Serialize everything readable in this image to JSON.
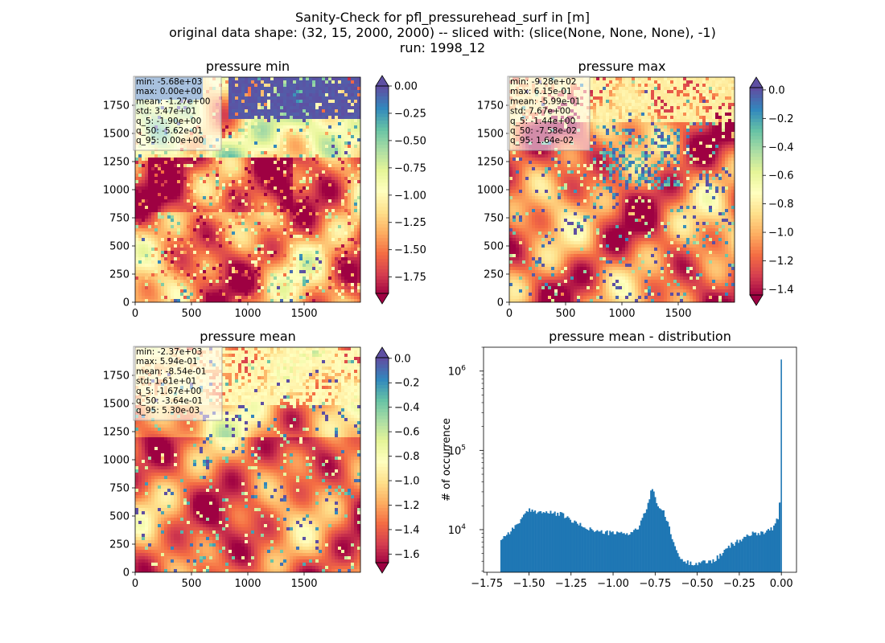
{
  "suptitle": {
    "line1": "Sanity-Check for pfl_pressurehead_surf in [m]",
    "line2": "original data shape: (32, 15, 2000, 2000) -- sliced with: (slice(None, None, None), -1)",
    "line3": "run: 1998_12"
  },
  "chart_data": [
    {
      "type": "heatmap",
      "title": "pressure min",
      "colormap": "Spectral",
      "extend": "both",
      "x_ticks": [
        "0",
        "500",
        "1000",
        "1500"
      ],
      "y_ticks": [
        "0",
        "250",
        "500",
        "750",
        "1000",
        "1250",
        "1500",
        "1750"
      ],
      "xlim": [
        0,
        2000
      ],
      "ylim": [
        0,
        2000
      ],
      "colorbar": {
        "vmin": -1.9,
        "vmax": 0.0,
        "ticks": [
          "0.00",
          "-0.25",
          "-0.50",
          "-0.75",
          "-1.00",
          "-1.25",
          "-1.50",
          "-1.75"
        ],
        "tick_values": [
          0.0,
          -0.25,
          -0.5,
          -0.75,
          -1.0,
          -1.25,
          -1.5,
          -1.75
        ]
      },
      "stats": [
        "min: -5.68e+03",
        "max: 0.00e+00",
        "mean: -1.27e+00",
        "std: 3.47e+01",
        "q_5: -1.90e+00",
        "q_50: -5.62e-01",
        "q_95: 0.00e+00"
      ]
    },
    {
      "type": "heatmap",
      "title": "pressure max",
      "colormap": "Spectral",
      "extend": "both",
      "x_ticks": [
        "0",
        "500",
        "1000",
        "1500"
      ],
      "y_ticks": [
        "0",
        "250",
        "500",
        "750",
        "1000",
        "1250",
        "1500",
        "1750"
      ],
      "xlim": [
        0,
        2000
      ],
      "ylim": [
        0,
        2000
      ],
      "colorbar": {
        "vmin": -1.44,
        "vmax": 0.0164,
        "ticks": [
          "0.0",
          "-0.2",
          "-0.4",
          "-0.6",
          "-0.8",
          "-1.0",
          "-1.2",
          "-1.4"
        ],
        "tick_values": [
          0.0,
          -0.2,
          -0.4,
          -0.6,
          -0.8,
          -1.0,
          -1.2,
          -1.4
        ]
      },
      "stats": [
        "min: -9.28e+02",
        "max: 6.15e-01",
        "mean: -5.99e-01",
        "std: 7.67e+00",
        "q_5: -1.44e+00",
        "q_50: -7.58e-02",
        "q_95: 1.64e-02"
      ]
    },
    {
      "type": "heatmap",
      "title": "pressure mean",
      "colormap": "Spectral",
      "extend": "both",
      "x_ticks": [
        "0",
        "500",
        "1000",
        "1500"
      ],
      "y_ticks": [
        "0",
        "250",
        "500",
        "750",
        "1000",
        "1250",
        "1500",
        "1750"
      ],
      "xlim": [
        0,
        2000
      ],
      "ylim": [
        0,
        2000
      ],
      "colorbar": {
        "vmin": -1.67,
        "vmax": 0.0053,
        "ticks": [
          "0.0",
          "-0.2",
          "-0.4",
          "-0.6",
          "-0.8",
          "-1.0",
          "-1.2",
          "-1.4",
          "-1.6"
        ],
        "tick_values": [
          0.0,
          -0.2,
          -0.4,
          -0.6,
          -0.8,
          -1.0,
          -1.2,
          -1.4,
          -1.6
        ]
      },
      "stats": [
        "min: -2.37e+03",
        "max: 5.94e-01",
        "mean: -8.54e-01",
        "std: 1.61e+01",
        "q_5: -1.67e+00",
        "q_50: -3.64e-01",
        "q_95: 5.30e-03"
      ]
    },
    {
      "type": "bar",
      "subtype": "histogram",
      "title": "pressure mean - distribution",
      "ylabel": "# of occurrence",
      "yscale": "log",
      "color": "#1f77b4",
      "xlim": [
        -1.77,
        0.09
      ],
      "ylim": [
        2900,
        2000000
      ],
      "x_ticks": [
        "−1.75",
        "−1.50",
        "−1.25",
        "−1.00",
        "−0.75",
        "−0.50",
        "−0.25",
        "0.00"
      ],
      "x_tick_values": [
        -1.75,
        -1.5,
        -1.25,
        -1.0,
        -0.75,
        -0.5,
        -0.25,
        0.0
      ],
      "y_ticks": [
        {
          "base": "10",
          "exp": "4",
          "value": 10000
        },
        {
          "base": "10",
          "exp": "5",
          "value": 100000
        },
        {
          "base": "10",
          "exp": "6",
          "value": 1000000
        }
      ],
      "x": [
        -1.67,
        -1.6,
        -1.5,
        -1.4,
        -1.3,
        -1.25,
        -1.2,
        -1.1,
        -1.0,
        -0.9,
        -0.85,
        -0.82,
        -0.8,
        -0.78,
        -0.77,
        -0.76,
        -0.75,
        -0.74,
        -0.72,
        -0.7,
        -0.68,
        -0.65,
        -0.62,
        -0.6,
        -0.55,
        -0.5,
        -0.45,
        -0.4,
        -0.35,
        -0.3,
        -0.25,
        -0.22,
        -0.2,
        -0.15,
        -0.1,
        -0.05,
        -0.02,
        -0.01,
        0.0
      ],
      "values": [
        7500,
        10000,
        17500,
        16500,
        15500,
        13000,
        11500,
        9500,
        9000,
        9000,
        10500,
        14500,
        19000,
        26000,
        34000,
        33000,
        26000,
        21000,
        18500,
        16500,
        13000,
        7800,
        5300,
        4200,
        3800,
        3800,
        3900,
        4100,
        5000,
        6400,
        7200,
        7900,
        8600,
        9000,
        9400,
        10500,
        14000,
        22000,
        1400000
      ]
    }
  ]
}
